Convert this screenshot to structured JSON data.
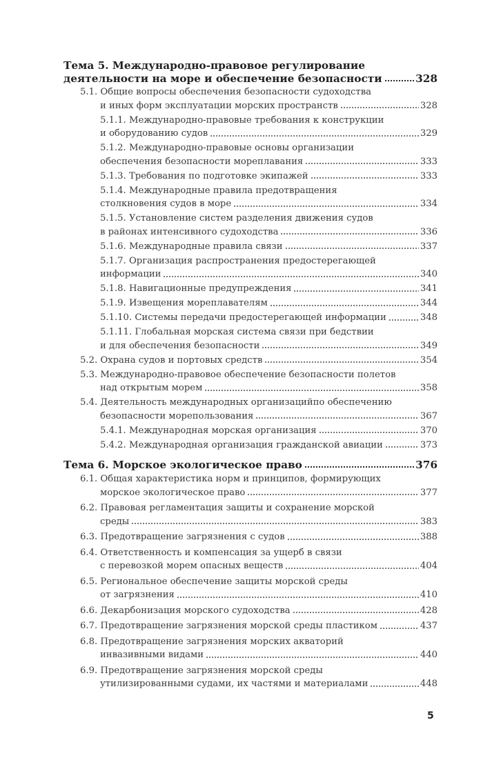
{
  "sections": [
    {
      "entries": [
        {
          "level": 0,
          "lines": [
            "Тема 5. Международно-правовое регулирование",
            "деятельности на море и обеспечение безопасности"
          ],
          "page": "328"
        },
        {
          "level": 1,
          "lines": [
            "5.1. Общие вопросы обеспечения безопасности судоходства",
            "и иных форм эксплуатации морских пространств"
          ],
          "page": "328"
        },
        {
          "level": 2,
          "lines": [
            "5.1.1. Международно-правовые требования к конструкции",
            "и оборудованию судов"
          ],
          "page": "329"
        },
        {
          "level": 2,
          "lines": [
            "5.1.2. Международно-правовые основы организации",
            "обеспечения безопасности мореплавания"
          ],
          "page": "333"
        },
        {
          "level": 2,
          "lines": [
            "5.1.3. Требования по подготовке экипажей"
          ],
          "page": "333"
        },
        {
          "level": 2,
          "lines": [
            "5.1.4. Международные правила предотвращения",
            "столкновения судов в море"
          ],
          "page": "334"
        },
        {
          "level": 2,
          "lines": [
            "5.1.5. Установление систем разделения движения судов",
            "в районах интенсивного судоходства"
          ],
          "page": "336"
        },
        {
          "level": 2,
          "lines": [
            "5.1.6. Международные правила связи"
          ],
          "page": "337"
        },
        {
          "level": 2,
          "lines": [
            "5.1.7. Организация распространения предостерегающей",
            "информации"
          ],
          "page": "340"
        },
        {
          "level": 2,
          "lines": [
            "5.1.8. Навигационные предупреждения"
          ],
          "page": "341"
        },
        {
          "level": 2,
          "lines": [
            "5.1.9. Извещения мореплавателям"
          ],
          "page": "344"
        },
        {
          "level": 2,
          "lines": [
            "5.1.10. Системы передачи предостерегающей информации"
          ],
          "page": "348"
        },
        {
          "level": 2,
          "lines": [
            "5.1.11. Глобальная морская система связи при бедствии",
            "и для обеспечения безопасности"
          ],
          "page": "349"
        },
        {
          "level": 1,
          "lines": [
            "5.2. Охрана судов и портовых средств"
          ],
          "page": "354"
        },
        {
          "level": 1,
          "lines": [
            "5.3. Международно-правовое обеспечение безопасности полетов",
            "над открытым морем"
          ],
          "page": "358"
        },
        {
          "level": 1,
          "lines": [
            "5.4. Деятельность международных организацийпо обеспечению",
            "безопасности морепользования"
          ],
          "page": "367"
        },
        {
          "level": 2,
          "lines": [
            "5.4.1. Международная морская организация"
          ],
          "page": "370"
        },
        {
          "level": 2,
          "lines": [
            "5.4.2. Международная организация гражданской авиации"
          ],
          "page": "373"
        }
      ]
    },
    {
      "entries": [
        {
          "level": 0,
          "lines": [
            "Тема 6. Морское экологическое право"
          ],
          "page": "376"
        },
        {
          "level": 1,
          "lines": [
            "6.1. Общая характеристика норм и принципов, формирующих",
            "морское экологическое право"
          ],
          "page": "377"
        },
        {
          "level": 1,
          "lines": [
            "6.2. Правовая регламентация защиты и сохранение морской",
            "среды"
          ],
          "page": "383"
        },
        {
          "level": 1,
          "lines": [
            "6.3. Предотвращение загрязнения с судов"
          ],
          "page": "388"
        },
        {
          "level": 1,
          "lines": [
            "6.4. Ответственность и компенсация за ущерб в связи",
            "с перевозкой морем опасных веществ"
          ],
          "page": "404"
        },
        {
          "level": 1,
          "lines": [
            "6.5. Региональное обеспечение защиты морской среды",
            "от загрязнения"
          ],
          "page": "410"
        },
        {
          "level": 1,
          "lines": [
            "6.6. Декарбонизация морского судоходства"
          ],
          "page": "428"
        },
        {
          "level": 1,
          "lines": [
            "6.7. Предотвращение загрязнения морской среды пластиком"
          ],
          "page": "437"
        },
        {
          "level": 1,
          "lines": [
            "6.8. Предотвращение загрязнения морских акваторий",
            "инвазивными видами"
          ],
          "page": "440"
        },
        {
          "level": 1,
          "lines": [
            "6.9. Предотвращение загрязнения морской среды",
            "утилизированными судами, их частями и материалами"
          ],
          "page": "448"
        }
      ]
    }
  ],
  "page_number": "5"
}
